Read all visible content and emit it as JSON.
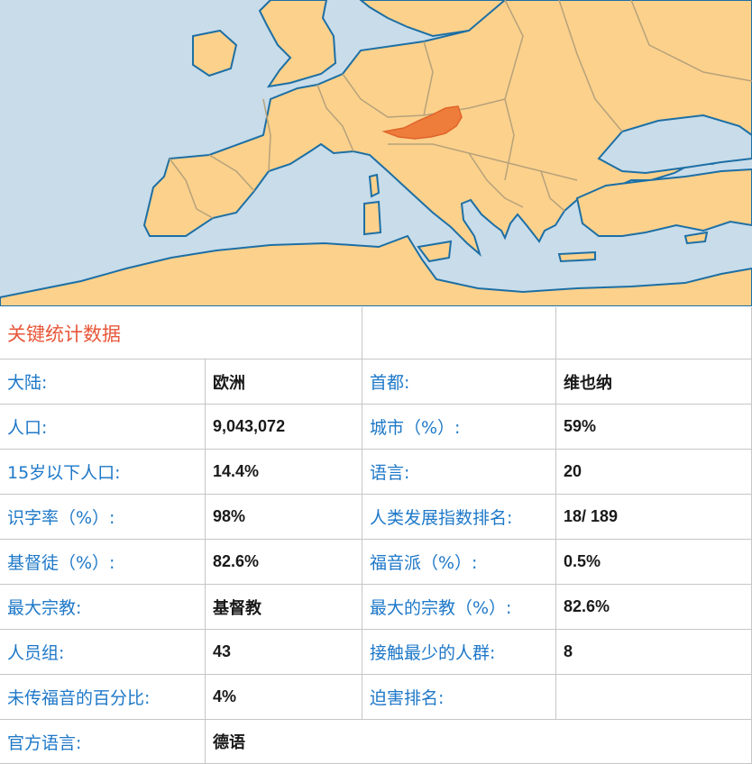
{
  "map": {
    "description_icon": "europe-map-icon",
    "colors": {
      "sea": "#c8dcea",
      "land": "#fbd18c",
      "border": "#b7a27a",
      "coast": "#1d6fa4",
      "highlight": "#ee7c3b"
    }
  },
  "stats": {
    "title": "关键统计数据",
    "rows": [
      {
        "l1": "大陆:",
        "v1": "欧洲",
        "l2": "首都:",
        "v2": "维也纳"
      },
      {
        "l1": "人口:",
        "v1": "9,043,072",
        "l2": "城市（%）:",
        "v2": "59%"
      },
      {
        "l1": "15岁以下人口:",
        "v1": "14.4%",
        "l2": "语言:",
        "v2": "20"
      },
      {
        "l1": "识字率（%）:",
        "v1": "98%",
        "l2": "人类发展指数排名:",
        "v2": "18/ 189"
      },
      {
        "l1": "基督徒（%）:",
        "v1": "82.6%",
        "l2": "福音派（%）:",
        "v2": "0.5%"
      },
      {
        "l1": "最大宗教:",
        "v1": "基督教",
        "l2": "最大的宗教（%）:",
        "v2": "82.6%"
      },
      {
        "l1": "人员组:",
        "v1": "43",
        "l2": "接触最少的人群:",
        "v2": "8"
      },
      {
        "l1": "未传福音的百分比:",
        "v1": "4%",
        "l2": "迫害排名:",
        "v2": ""
      }
    ],
    "official_language_label": "官方语言:",
    "official_language_value": "德语"
  }
}
